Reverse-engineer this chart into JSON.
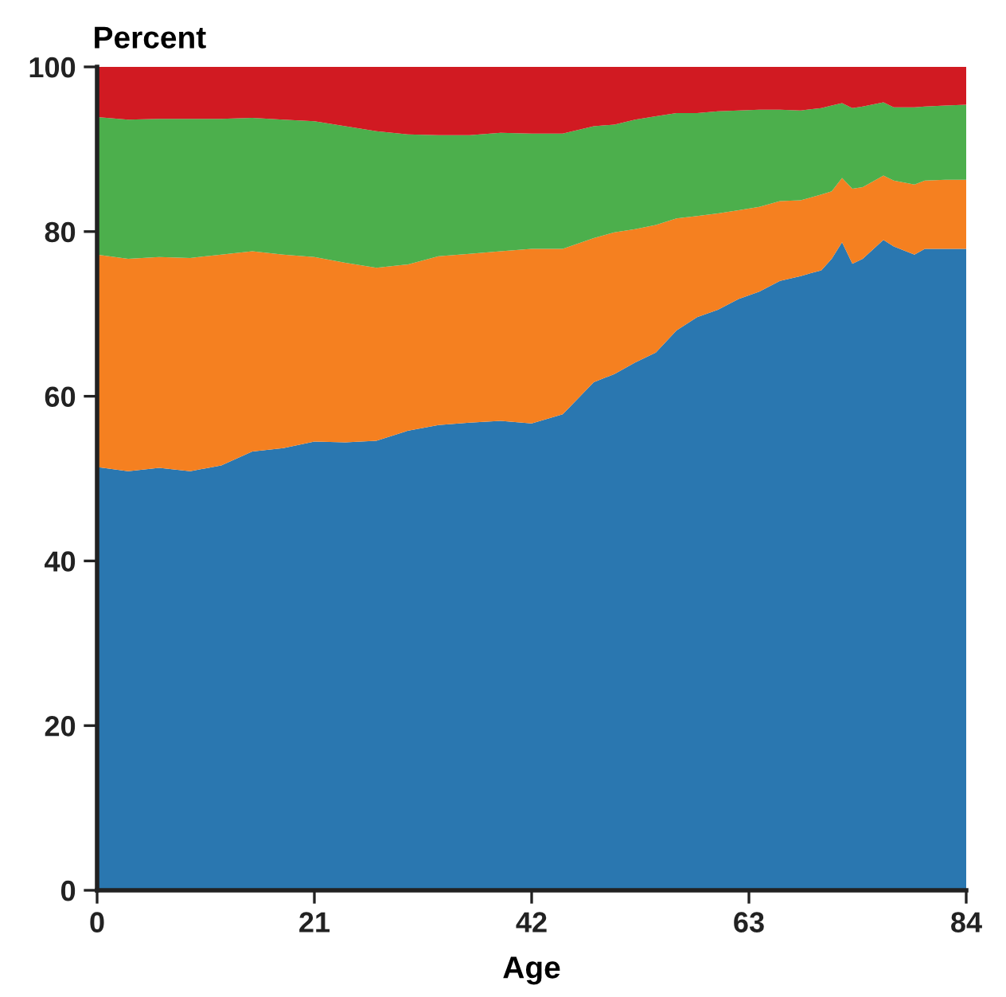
{
  "chart_data": {
    "type": "area",
    "stacked": true,
    "xlabel": "Age",
    "ylabel": "Percent",
    "x": [
      0,
      3,
      6,
      9,
      12,
      15,
      18,
      21,
      24,
      27,
      30,
      33,
      36,
      39,
      42,
      45,
      48,
      50,
      52,
      54,
      56,
      58,
      60,
      62,
      64,
      66,
      68,
      70,
      71,
      72,
      73,
      74,
      76,
      77,
      79,
      80,
      82,
      84
    ],
    "series": [
      {
        "color": "#2a77b0",
        "values": [
          51.4,
          50.9,
          51.3,
          50.9,
          51.6,
          53.3,
          53.7,
          54.5,
          54.4,
          54.6,
          55.8,
          56.5,
          56.8,
          57.0,
          56.7,
          57.8,
          61.7,
          62.7,
          64.1,
          65.3,
          68.0,
          69.6,
          70.5,
          71.8,
          72.7,
          74.0,
          74.6,
          75.3,
          76.7,
          78.7,
          76.1,
          76.7,
          79.0,
          78.2,
          77.2,
          77.9,
          77.9,
          77.9
        ]
      },
      {
        "color": "#f58020",
        "values": [
          25.8,
          25.8,
          25.6,
          25.9,
          25.6,
          24.3,
          23.5,
          22.4,
          21.8,
          21.0,
          20.2,
          20.5,
          20.5,
          20.6,
          21.2,
          20.1,
          17.5,
          17.2,
          16.2,
          15.5,
          13.6,
          12.3,
          11.7,
          10.8,
          10.3,
          9.7,
          9.2,
          9.2,
          8.2,
          7.8,
          9.1,
          8.7,
          7.8,
          8.0,
          8.5,
          8.3,
          8.4,
          8.4
        ]
      },
      {
        "color": "#4caf4c",
        "values": [
          16.7,
          16.9,
          16.8,
          16.9,
          16.5,
          16.2,
          16.4,
          16.5,
          16.6,
          16.6,
          15.8,
          14.7,
          14.4,
          14.4,
          14.0,
          14.0,
          13.6,
          13.1,
          13.3,
          13.2,
          12.8,
          12.5,
          12.4,
          12.1,
          11.8,
          11.1,
          10.9,
          10.5,
          10.4,
          9.1,
          9.8,
          9.8,
          8.9,
          8.9,
          9.4,
          9.0,
          9.0,
          9.1
        ]
      },
      {
        "color": "#d11a22",
        "values": [
          6.1,
          6.4,
          6.3,
          6.3,
          6.3,
          6.2,
          6.4,
          6.6,
          7.2,
          7.8,
          8.2,
          8.3,
          8.3,
          8.0,
          8.1,
          8.1,
          7.2,
          7.0,
          6.4,
          6.0,
          5.6,
          5.6,
          5.4,
          5.3,
          5.2,
          5.2,
          5.3,
          5.0,
          4.7,
          4.4,
          5.0,
          4.8,
          4.3,
          4.9,
          4.9,
          4.8,
          4.7,
          4.6
        ]
      }
    ],
    "xlim": [
      0,
      84
    ],
    "ylim": [
      0,
      100
    ],
    "xticks": [
      0,
      21,
      42,
      63,
      84
    ],
    "yticks": [
      0,
      20,
      40,
      60,
      80,
      100
    ],
    "grid": false,
    "legend": false
  }
}
